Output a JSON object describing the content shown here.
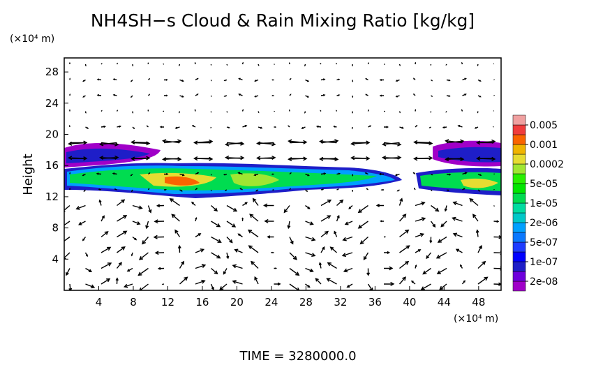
{
  "chart_data": {
    "type": "contour",
    "title": "NH4SH−s Cloud & Rain Mixing Ratio [kg/kg]",
    "y_unit": "(×10⁴ m)",
    "y_label": "Height",
    "x_unit": "(×10⁴ m)",
    "annotation": "TIME = 3280000.0",
    "xlim": [
      0,
      50.6
    ],
    "ylim": [
      0,
      29.8
    ],
    "xticks": [
      4,
      8,
      12,
      16,
      20,
      24,
      28,
      32,
      36,
      40,
      44,
      48
    ],
    "yticks": [
      4,
      8,
      12,
      16,
      20,
      24,
      28
    ],
    "colorbar": {
      "colors": [
        "#a000c8",
        "#6e00dc",
        "#1e1ec8",
        "#0000ff",
        "#1e3cff",
        "#0a78ff",
        "#00a0ff",
        "#00c8c8",
        "#00dca0",
        "#00dc50",
        "#00e600",
        "#28f000",
        "#a0e632",
        "#e6dc32",
        "#f0b400",
        "#fa6400",
        "#f03c3c",
        "#f0a0a0"
      ],
      "levels": [
        {
          "value": 2e-08,
          "label": "2e-08"
        },
        {
          "value": 1e-07,
          "label": "1e-07"
        },
        {
          "value": 5e-07,
          "label": "5e-07"
        },
        {
          "value": 2e-06,
          "label": "2e-06"
        },
        {
          "value": 1e-05,
          "label": "1e-05"
        },
        {
          "value": 5e-05,
          "label": "5e-05"
        },
        0.0002,
        0.001,
        0.005
      ]
    }
  }
}
